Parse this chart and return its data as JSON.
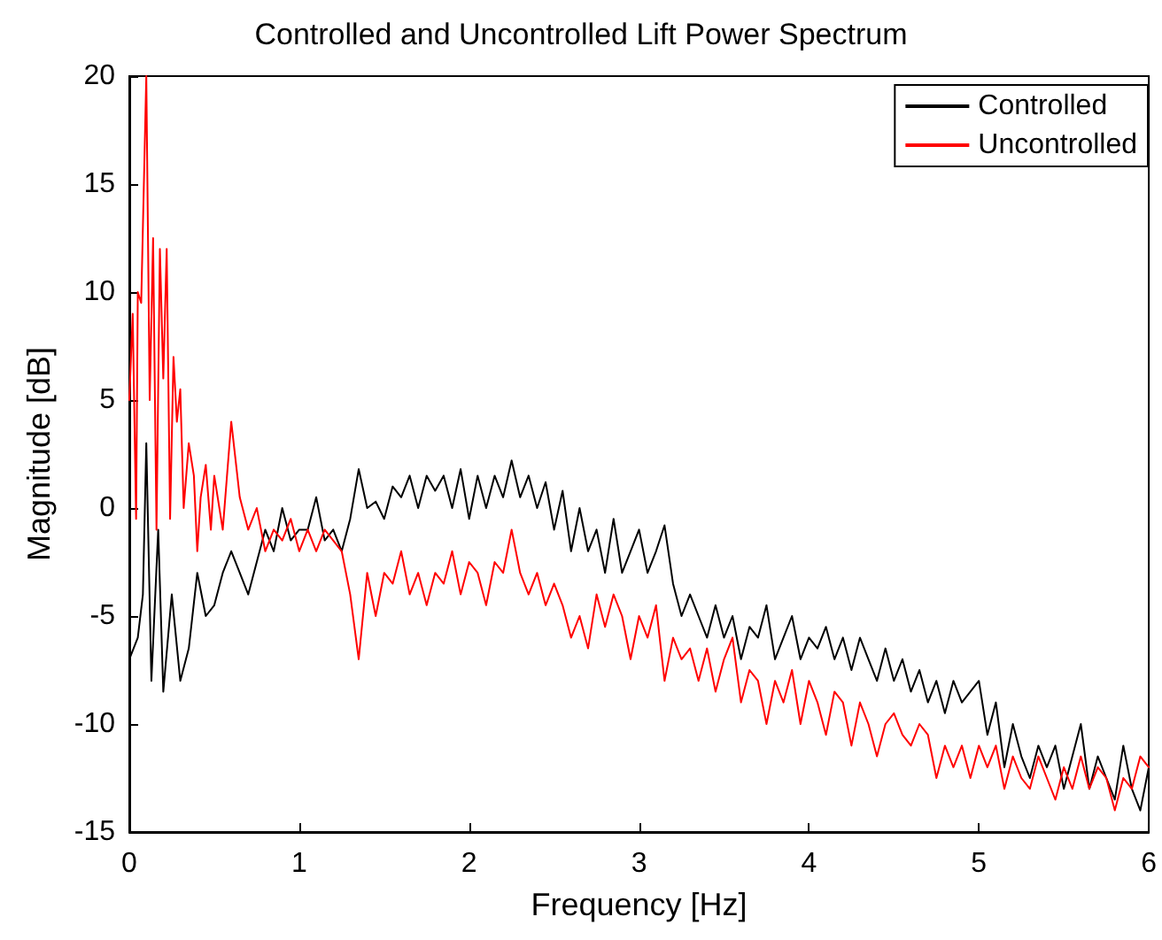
{
  "chart_data": {
    "type": "line",
    "title": "Controlled and Uncontrolled Lift Power Spectrum",
    "xlabel": "Frequency [Hz]",
    "ylabel": "Magnitude [dB]",
    "xlim": [
      0,
      6
    ],
    "xticks": [
      0,
      1,
      2,
      3,
      4,
      5,
      6
    ],
    "ylim": [
      -15,
      20
    ],
    "yticks": [
      -15,
      -10,
      -5,
      0,
      5,
      10,
      15,
      20
    ],
    "grid": false,
    "legend": "top right",
    "marker": "none",
    "line_style": "solid",
    "series": [
      {
        "name": "Controlled",
        "color": "#000000",
        "x": [
          0,
          0.05,
          0.08,
          0.1,
          0.13,
          0.17,
          0.2,
          0.25,
          0.3,
          0.35,
          0.4,
          0.45,
          0.5,
          0.55,
          0.6,
          0.65,
          0.7,
          0.75,
          0.8,
          0.85,
          0.9,
          0.95,
          1.0,
          1.05,
          1.1,
          1.15,
          1.2,
          1.25,
          1.3,
          1.35,
          1.4,
          1.45,
          1.5,
          1.55,
          1.6,
          1.65,
          1.7,
          1.75,
          1.8,
          1.85,
          1.9,
          1.95,
          2.0,
          2.05,
          2.1,
          2.15,
          2.2,
          2.25,
          2.3,
          2.35,
          2.4,
          2.45,
          2.5,
          2.55,
          2.6,
          2.65,
          2.7,
          2.75,
          2.8,
          2.85,
          2.9,
          2.95,
          3.0,
          3.05,
          3.1,
          3.15,
          3.2,
          3.25,
          3.3,
          3.35,
          3.4,
          3.45,
          3.5,
          3.55,
          3.6,
          3.65,
          3.7,
          3.75,
          3.8,
          3.85,
          3.9,
          3.95,
          4.0,
          4.05,
          4.1,
          4.15,
          4.2,
          4.25,
          4.3,
          4.35,
          4.4,
          4.45,
          4.5,
          4.55,
          4.6,
          4.65,
          4.7,
          4.75,
          4.8,
          4.85,
          4.9,
          4.95,
          5.0,
          5.05,
          5.1,
          5.15,
          5.2,
          5.25,
          5.3,
          5.35,
          5.4,
          5.45,
          5.5,
          5.55,
          5.6,
          5.65,
          5.7,
          5.75,
          5.8,
          5.85,
          5.9,
          5.95,
          6.0
        ],
        "values": [
          -7,
          -6,
          -4,
          3,
          -8,
          -1,
          -8.5,
          -4,
          -8,
          -6.5,
          -3,
          -5,
          -4.5,
          -3,
          -2,
          -3,
          -4,
          -2.5,
          -1,
          -2,
          0,
          -1.5,
          -1,
          -1,
          0.5,
          -1.5,
          -1,
          -2,
          -0.5,
          1.8,
          0,
          0.3,
          -0.5,
          1,
          0.5,
          1.5,
          0,
          1.5,
          0.8,
          1.5,
          0,
          1.8,
          -0.5,
          1.5,
          0,
          1.5,
          0.5,
          2.2,
          0.5,
          1.5,
          0,
          1.2,
          -1,
          0.8,
          -2,
          0,
          -2,
          -1,
          -3,
          -0.5,
          -3,
          -2,
          -1,
          -3,
          -2,
          -0.8,
          -3.5,
          -5,
          -4,
          -5,
          -6,
          -4.5,
          -6,
          -5,
          -7,
          -5.5,
          -6,
          -4.5,
          -7,
          -6,
          -5,
          -7,
          -6,
          -6.5,
          -5.5,
          -7,
          -6,
          -7.5,
          -6,
          -7,
          -8,
          -6.5,
          -8,
          -7,
          -8.5,
          -7.5,
          -9,
          -8,
          -9.5,
          -8,
          -9,
          -8.5,
          -8,
          -10.5,
          -9,
          -12,
          -10,
          -11.5,
          -12.5,
          -11,
          -12,
          -11,
          -13,
          -11.5,
          -10,
          -13,
          -11.5,
          -12.5,
          -13.5,
          -11,
          -13,
          -14,
          -12
        ]
      },
      {
        "name": "Uncontrolled",
        "color": "#ff0000",
        "x": [
          0,
          0.02,
          0.04,
          0.05,
          0.07,
          0.08,
          0.1,
          0.12,
          0.14,
          0.16,
          0.18,
          0.2,
          0.22,
          0.24,
          0.26,
          0.28,
          0.3,
          0.32,
          0.35,
          0.38,
          0.4,
          0.42,
          0.45,
          0.48,
          0.5,
          0.55,
          0.6,
          0.65,
          0.7,
          0.75,
          0.8,
          0.85,
          0.9,
          0.95,
          1.0,
          1.05,
          1.1,
          1.15,
          1.2,
          1.25,
          1.3,
          1.35,
          1.4,
          1.45,
          1.5,
          1.55,
          1.6,
          1.65,
          1.7,
          1.75,
          1.8,
          1.85,
          1.9,
          1.95,
          2.0,
          2.05,
          2.1,
          2.15,
          2.2,
          2.25,
          2.3,
          2.35,
          2.4,
          2.45,
          2.5,
          2.55,
          2.6,
          2.65,
          2.7,
          2.75,
          2.8,
          2.85,
          2.9,
          2.95,
          3.0,
          3.05,
          3.1,
          3.15,
          3.2,
          3.25,
          3.3,
          3.35,
          3.4,
          3.45,
          3.5,
          3.55,
          3.6,
          3.65,
          3.7,
          3.75,
          3.8,
          3.85,
          3.9,
          3.95,
          4.0,
          4.05,
          4.1,
          4.15,
          4.2,
          4.25,
          4.3,
          4.35,
          4.4,
          4.45,
          4.5,
          4.55,
          4.6,
          4.65,
          4.7,
          4.75,
          4.8,
          4.85,
          4.9,
          4.95,
          5.0,
          5.05,
          5.1,
          5.15,
          5.2,
          5.25,
          5.3,
          5.35,
          5.4,
          5.45,
          5.5,
          5.55,
          5.6,
          5.65,
          5.7,
          5.75,
          5.8,
          5.85,
          5.9,
          5.95,
          6.0
        ],
        "values": [
          5,
          9,
          -0.5,
          10,
          9.5,
          13,
          20,
          5,
          12.5,
          -1,
          12,
          6,
          12,
          -0.5,
          7,
          4,
          5.5,
          0,
          3,
          1.5,
          -2,
          0.5,
          2,
          -1,
          1.5,
          -1,
          4,
          0.5,
          -1,
          0,
          -2,
          -1,
          -1.5,
          -0.5,
          -2,
          -1,
          -2,
          -1,
          -1.5,
          -2,
          -4,
          -7,
          -3,
          -5,
          -3,
          -3.5,
          -2,
          -4,
          -3,
          -4.5,
          -3,
          -3.5,
          -2,
          -4,
          -2.5,
          -3,
          -4.5,
          -2.5,
          -3,
          -1,
          -3,
          -4,
          -3,
          -4.5,
          -3.5,
          -4.5,
          -6,
          -5,
          -6.5,
          -4,
          -5.5,
          -4,
          -5,
          -7,
          -5,
          -6,
          -4.5,
          -8,
          -6,
          -7,
          -6.5,
          -8,
          -6.5,
          -8.5,
          -7,
          -6,
          -9,
          -7.5,
          -8,
          -10,
          -8,
          -9,
          -7.5,
          -10,
          -8,
          -9,
          -10.5,
          -8.5,
          -9,
          -11,
          -9,
          -10,
          -11.5,
          -10,
          -9.5,
          -10.5,
          -11,
          -10,
          -10.5,
          -12.5,
          -11,
          -12,
          -11,
          -12.5,
          -11,
          -12,
          -11,
          -13,
          -11.5,
          -12.5,
          -13,
          -11.5,
          -12.5,
          -13.5,
          -12,
          -13,
          -11.5,
          -13,
          -12,
          -12.5,
          -14,
          -12.5,
          -13,
          -11.5,
          -12
        ]
      }
    ]
  }
}
